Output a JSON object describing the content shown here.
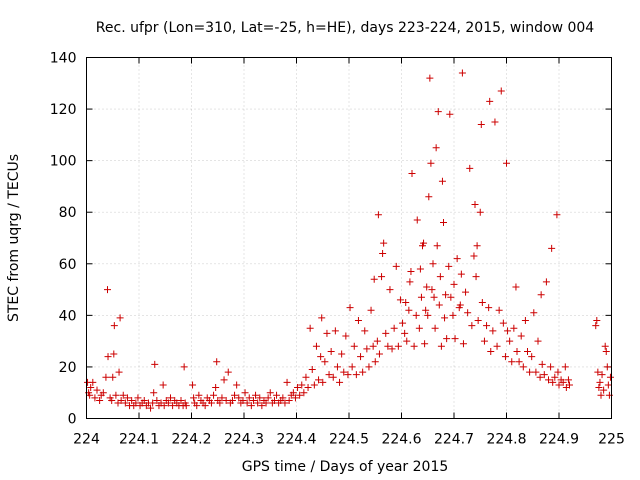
{
  "chart_data": {
    "type": "scatter",
    "title": "Rec. ufpr (Lon=310, Lat=-25, h=HE), days 223-224, 2015, window 004",
    "xlabel": "GPS time / Days of year 2015",
    "ylabel": "STEC from uqrg / TECUs",
    "xlim": [
      224,
      225
    ],
    "ylim": [
      0,
      140
    ],
    "xticks": [
      "224",
      "224.1",
      "224.2",
      "224.3",
      "224.4",
      "224.5",
      "224.6",
      "224.7",
      "224.8",
      "224.9",
      "225"
    ],
    "yticks": [
      "0",
      "20",
      "40",
      "60",
      "80",
      "100",
      "120",
      "140"
    ],
    "grid": true,
    "marker": "+",
    "color": "#cc0000",
    "series": [
      {
        "points": [
          [
            224.002,
            14
          ],
          [
            224.004,
            10
          ],
          [
            224.006,
            9
          ],
          [
            224.008,
            12
          ],
          [
            224.012,
            14
          ],
          [
            224.016,
            8
          ],
          [
            224.02,
            11
          ],
          [
            224.025,
            7
          ],
          [
            224.028,
            9
          ],
          [
            224.032,
            10
          ],
          [
            224.037,
            16
          ],
          [
            224.04,
            50
          ],
          [
            224.041,
            24
          ],
          [
            224.045,
            8
          ],
          [
            224.048,
            7
          ],
          [
            224.05,
            16
          ],
          [
            224.052,
            25
          ],
          [
            224.053,
            36
          ],
          [
            224.056,
            9
          ],
          [
            224.06,
            6
          ],
          [
            224.062,
            18
          ],
          [
            224.064,
            39
          ],
          [
            224.066,
            7
          ],
          [
            224.07,
            9
          ],
          [
            224.074,
            6
          ],
          [
            224.078,
            8
          ],
          [
            224.082,
            5
          ],
          [
            224.086,
            7
          ],
          [
            224.09,
            5
          ],
          [
            224.094,
            6
          ],
          [
            224.098,
            8
          ],
          [
            224.102,
            5
          ],
          [
            224.106,
            6
          ],
          [
            224.11,
            7
          ],
          [
            224.114,
            5
          ],
          [
            224.118,
            6
          ],
          [
            224.122,
            4
          ],
          [
            224.126,
            6
          ],
          [
            224.128,
            10
          ],
          [
            224.13,
            21
          ],
          [
            224.134,
            7
          ],
          [
            224.138,
            5
          ],
          [
            224.142,
            6
          ],
          [
            224.146,
            13
          ],
          [
            224.148,
            5
          ],
          [
            224.152,
            7
          ],
          [
            224.156,
            6
          ],
          [
            224.16,
            8
          ],
          [
            224.164,
            5
          ],
          [
            224.168,
            7
          ],
          [
            224.172,
            6
          ],
          [
            224.176,
            5
          ],
          [
            224.18,
            7
          ],
          [
            224.184,
            5
          ],
          [
            224.186,
            20
          ],
          [
            224.188,
            6
          ],
          [
            224.19,
            5
          ],
          [
            224.202,
            13
          ],
          [
            224.204,
            8
          ],
          [
            224.206,
            6
          ],
          [
            224.21,
            5
          ],
          [
            224.214,
            9
          ],
          [
            224.218,
            7
          ],
          [
            224.222,
            6
          ],
          [
            224.226,
            5
          ],
          [
            224.23,
            8
          ],
          [
            224.234,
            7
          ],
          [
            224.238,
            6
          ],
          [
            224.242,
            9
          ],
          [
            224.246,
            12
          ],
          [
            224.248,
            22
          ],
          [
            224.25,
            7
          ],
          [
            224.254,
            6
          ],
          [
            224.258,
            8
          ],
          [
            224.262,
            15
          ],
          [
            224.266,
            7
          ],
          [
            224.27,
            18
          ],
          [
            224.274,
            6
          ],
          [
            224.278,
            7
          ],
          [
            224.282,
            9
          ],
          [
            224.286,
            13
          ],
          [
            224.29,
            8
          ],
          [
            224.294,
            6
          ],
          [
            224.298,
            7
          ],
          [
            224.302,
            10
          ],
          [
            224.306,
            6
          ],
          [
            224.31,
            8
          ],
          [
            224.314,
            5
          ],
          [
            224.318,
            7
          ],
          [
            224.322,
            9
          ],
          [
            224.326,
            6
          ],
          [
            224.33,
            8
          ],
          [
            224.334,
            5
          ],
          [
            224.338,
            7
          ],
          [
            224.342,
            6
          ],
          [
            224.346,
            8
          ],
          [
            224.35,
            10
          ],
          [
            224.354,
            6
          ],
          [
            224.358,
            7
          ],
          [
            224.362,
            9
          ],
          [
            224.366,
            6
          ],
          [
            224.37,
            7
          ],
          [
            224.374,
            8
          ],
          [
            224.378,
            6
          ],
          [
            224.382,
            14
          ],
          [
            224.386,
            7
          ],
          [
            224.39,
            9
          ],
          [
            224.394,
            10
          ],
          [
            224.398,
            8
          ],
          [
            224.402,
            12
          ],
          [
            224.406,
            9
          ],
          [
            224.41,
            13
          ],
          [
            224.414,
            10
          ],
          [
            224.418,
            16
          ],
          [
            224.422,
            12
          ],
          [
            224.426,
            35
          ],
          [
            224.43,
            19
          ],
          [
            224.434,
            13
          ],
          [
            224.438,
            28
          ],
          [
            224.442,
            15
          ],
          [
            224.446,
            24
          ],
          [
            224.448,
            39
          ],
          [
            224.45,
            14
          ],
          [
            224.454,
            22
          ],
          [
            224.458,
            33
          ],
          [
            224.462,
            17
          ],
          [
            224.466,
            26
          ],
          [
            224.47,
            16
          ],
          [
            224.474,
            34
          ],
          [
            224.478,
            20
          ],
          [
            224.482,
            14
          ],
          [
            224.486,
            25
          ],
          [
            224.49,
            18
          ],
          [
            224.494,
            32
          ],
          [
            224.498,
            17
          ],
          [
            224.502,
            43
          ],
          [
            224.506,
            20
          ],
          [
            224.51,
            28
          ],
          [
            224.514,
            17
          ],
          [
            224.518,
            38
          ],
          [
            224.522,
            24
          ],
          [
            224.526,
            18
          ],
          [
            224.53,
            34
          ],
          [
            224.534,
            27
          ],
          [
            224.538,
            20
          ],
          [
            224.542,
            42
          ],
          [
            224.546,
            28
          ],
          [
            224.548,
            54
          ],
          [
            224.55,
            22
          ],
          [
            224.554,
            30
          ],
          [
            224.556,
            79
          ],
          [
            224.558,
            25
          ],
          [
            224.562,
            55
          ],
          [
            224.564,
            64
          ],
          [
            224.566,
            68
          ],
          [
            224.57,
            33
          ],
          [
            224.574,
            28
          ],
          [
            224.578,
            50
          ],
          [
            224.582,
            27
          ],
          [
            224.586,
            35
          ],
          [
            224.59,
            59
          ],
          [
            224.594,
            28
          ],
          [
            224.598,
            46
          ],
          [
            224.602,
            37
          ],
          [
            224.606,
            33
          ],
          [
            224.608,
            45
          ],
          [
            224.61,
            30
          ],
          [
            224.614,
            42
          ],
          [
            224.616,
            53
          ],
          [
            224.618,
            57
          ],
          [
            224.62,
            95
          ],
          [
            224.624,
            28
          ],
          [
            224.628,
            40
          ],
          [
            224.63,
            77
          ],
          [
            224.634,
            35
          ],
          [
            224.636,
            58
          ],
          [
            224.638,
            47
          ],
          [
            224.64,
            67
          ],
          [
            224.642,
            68
          ],
          [
            224.644,
            29
          ],
          [
            224.646,
            42
          ],
          [
            224.648,
            51
          ],
          [
            224.65,
            40
          ],
          [
            224.652,
            86
          ],
          [
            224.654,
            132
          ],
          [
            224.656,
            99
          ],
          [
            224.658,
            50
          ],
          [
            224.66,
            60
          ],
          [
            224.662,
            47
          ],
          [
            224.664,
            35
          ],
          [
            224.666,
            105
          ],
          [
            224.668,
            67
          ],
          [
            224.67,
            119
          ],
          [
            224.672,
            44
          ],
          [
            224.674,
            55
          ],
          [
            224.676,
            28
          ],
          [
            224.678,
            92
          ],
          [
            224.68,
            76
          ],
          [
            224.682,
            39
          ],
          [
            224.684,
            48
          ],
          [
            224.686,
            31
          ],
          [
            224.69,
            59
          ],
          [
            224.692,
            118
          ],
          [
            224.694,
            47
          ],
          [
            224.698,
            40
          ],
          [
            224.7,
            52
          ],
          [
            224.702,
            31
          ],
          [
            224.706,
            62
          ],
          [
            224.71,
            43
          ],
          [
            224.712,
            44
          ],
          [
            224.714,
            56
          ],
          [
            224.716,
            134
          ],
          [
            224.718,
            29
          ],
          [
            224.722,
            49
          ],
          [
            224.726,
            41
          ],
          [
            224.73,
            97
          ],
          [
            224.734,
            36
          ],
          [
            224.738,
            63
          ],
          [
            224.74,
            83
          ],
          [
            224.742,
            55
          ],
          [
            224.744,
            67
          ],
          [
            224.746,
            38
          ],
          [
            224.75,
            80
          ],
          [
            224.752,
            114
          ],
          [
            224.754,
            45
          ],
          [
            224.758,
            30
          ],
          [
            224.762,
            36
          ],
          [
            224.766,
            43
          ],
          [
            224.768,
            123
          ],
          [
            224.77,
            26
          ],
          [
            224.774,
            34
          ],
          [
            224.778,
            115
          ],
          [
            224.782,
            28
          ],
          [
            224.786,
            42
          ],
          [
            224.79,
            127
          ],
          [
            224.794,
            37
          ],
          [
            224.798,
            24
          ],
          [
            224.8,
            99
          ],
          [
            224.802,
            34
          ],
          [
            224.806,
            30
          ],
          [
            224.81,
            22
          ],
          [
            224.814,
            35
          ],
          [
            224.818,
            51
          ],
          [
            224.82,
            26
          ],
          [
            224.824,
            22
          ],
          [
            224.828,
            32
          ],
          [
            224.832,
            20
          ],
          [
            224.836,
            38
          ],
          [
            224.84,
            26
          ],
          [
            224.844,
            18
          ],
          [
            224.848,
            24
          ],
          [
            224.852,
            41
          ],
          [
            224.856,
            18
          ],
          [
            224.86,
            30
          ],
          [
            224.864,
            16
          ],
          [
            224.866,
            48
          ],
          [
            224.868,
            21
          ],
          [
            224.872,
            17
          ],
          [
            224.876,
            53
          ],
          [
            224.88,
            15
          ],
          [
            224.884,
            20
          ],
          [
            224.886,
            66
          ],
          [
            224.888,
            14
          ],
          [
            224.892,
            16
          ],
          [
            224.896,
            79
          ],
          [
            224.898,
            18
          ],
          [
            224.9,
            13
          ],
          [
            224.904,
            15
          ],
          [
            224.908,
            14
          ],
          [
            224.912,
            20
          ],
          [
            224.914,
            12
          ],
          [
            224.918,
            15
          ],
          [
            224.92,
            13
          ],
          [
            224.97,
            36
          ],
          [
            224.972,
            38
          ],
          [
            224.974,
            18
          ],
          [
            224.976,
            12
          ],
          [
            224.978,
            14
          ],
          [
            224.98,
            9
          ],
          [
            224.982,
            17
          ],
          [
            224.985,
            11
          ],
          [
            224.988,
            28
          ],
          [
            224.99,
            26
          ],
          [
            224.992,
            20
          ],
          [
            224.994,
            13
          ],
          [
            224.996,
            9
          ],
          [
            224.998,
            16
          ]
        ]
      }
    ]
  }
}
